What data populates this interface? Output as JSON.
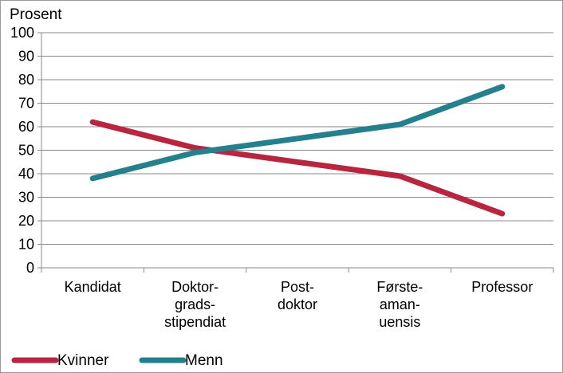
{
  "chart_data": {
    "type": "line",
    "ylabel": "Prosent",
    "ylim": [
      0,
      100
    ],
    "yticks": [
      0,
      10,
      20,
      30,
      40,
      50,
      60,
      70,
      80,
      90,
      100
    ],
    "grid": true,
    "legend_position": "bottom-left",
    "categories": [
      [
        "Kandidat"
      ],
      [
        "Doktor-",
        "grads-",
        "stipendiat"
      ],
      [
        "Post-",
        "doktor"
      ],
      [
        "Første-",
        "aman-",
        "uensis"
      ],
      [
        "Professor"
      ]
    ],
    "series": [
      {
        "name": "Kvinner",
        "color": "#b8253f",
        "values": [
          62,
          51,
          45,
          39,
          23
        ]
      },
      {
        "name": "Menn",
        "color": "#24808c",
        "values": [
          38,
          49,
          55,
          61,
          77
        ]
      }
    ]
  }
}
